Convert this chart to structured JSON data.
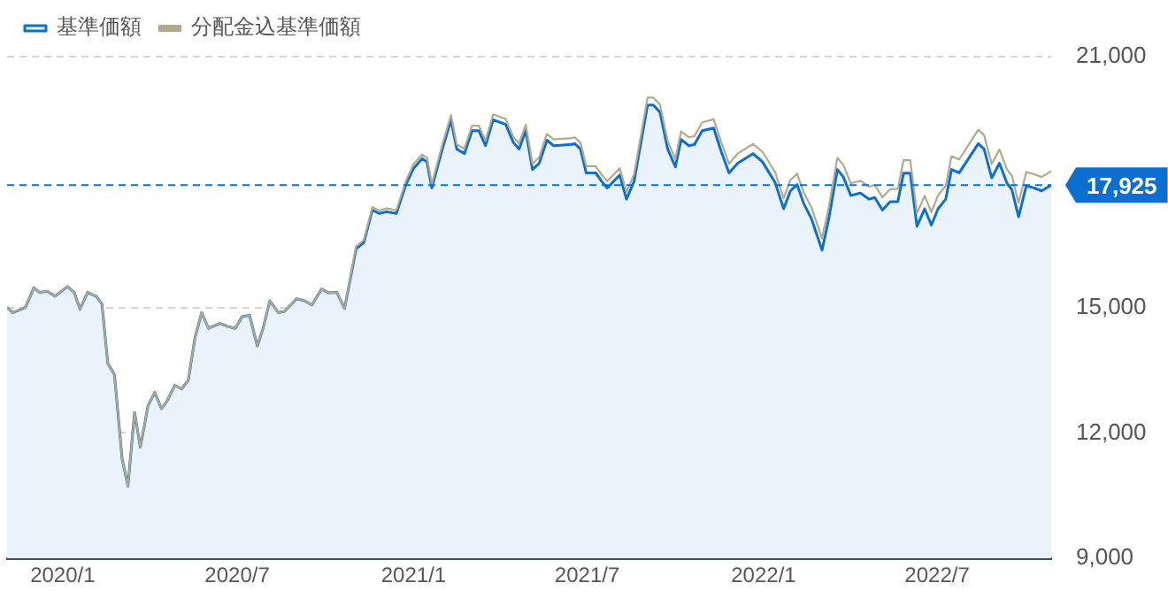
{
  "chart_data": {
    "type": "line",
    "x": [
      "2019-11-04",
      "2019-11-10",
      "2019-11-23",
      "2019-12-02",
      "2019-12-08",
      "2019-12-16",
      "2019-12-24",
      "2020-01-06",
      "2020-01-13",
      "2020-01-19",
      "2020-01-27",
      "2020-02-05",
      "2020-02-11",
      "2020-02-17",
      "2020-02-24",
      "2020-03-03",
      "2020-03-09",
      "2020-03-16",
      "2020-03-22",
      "2020-03-30",
      "2020-04-06",
      "2020-04-13",
      "2020-04-19",
      "2020-04-27",
      "2020-05-04",
      "2020-05-11",
      "2020-05-18",
      "2020-05-25",
      "2020-06-01",
      "2020-06-13",
      "2020-06-21",
      "2020-06-29",
      "2020-07-06",
      "2020-07-14",
      "2020-07-22",
      "2020-07-28",
      "2020-08-04",
      "2020-08-13",
      "2020-08-19",
      "2020-09-01",
      "2020-09-09",
      "2020-09-17",
      "2020-09-27",
      "2020-10-05",
      "2020-10-13",
      "2020-10-21",
      "2020-11-02",
      "2020-11-10",
      "2020-11-19",
      "2020-11-26",
      "2020-12-04",
      "2020-12-14",
      "2020-12-24",
      "2021-01-01",
      "2021-01-10",
      "2021-01-15",
      "2021-01-20",
      "2021-01-31",
      "2021-02-09",
      "2021-02-15",
      "2021-02-23",
      "2021-03-03",
      "2021-03-10",
      "2021-03-17",
      "2021-03-25",
      "2021-04-07",
      "2021-04-15",
      "2021-04-21",
      "2021-04-28",
      "2021-05-05",
      "2021-05-12",
      "2021-05-20",
      "2021-05-27",
      "2021-06-15",
      "2021-06-18",
      "2021-06-24",
      "2021-06-30",
      "2021-07-10",
      "2021-07-16",
      "2021-07-22",
      "2021-08-04",
      "2021-08-11",
      "2021-08-19",
      "2021-09-02",
      "2021-09-08",
      "2021-09-15",
      "2021-09-23",
      "2021-10-01",
      "2021-10-07",
      "2021-10-15",
      "2021-10-21",
      "2021-10-29",
      "2021-11-10",
      "2021-11-18",
      "2021-11-26",
      "2021-12-05",
      "2021-12-21",
      "2021-12-31",
      "2022-01-13",
      "2022-01-22",
      "2022-01-29",
      "2022-02-05",
      "2022-02-12",
      "2022-02-20",
      "2022-03-03",
      "2022-03-10",
      "2022-03-19",
      "2022-03-25",
      "2022-04-02",
      "2022-04-12",
      "2022-04-21",
      "2022-04-27",
      "2022-05-05",
      "2022-05-13",
      "2022-05-21",
      "2022-05-27",
      "2022-06-03",
      "2022-06-10",
      "2022-06-18",
      "2022-06-25",
      "2022-07-02",
      "2022-07-10",
      "2022-07-16",
      "2022-07-24",
      "2022-08-13",
      "2022-08-19",
      "2022-08-27",
      "2022-09-04",
      "2022-09-12",
      "2022-09-17",
      "2022-09-24",
      "2022-10-02",
      "2022-10-10",
      "2022-10-18",
      "2022-10-28"
    ],
    "series": [
      {
        "name": "基準価額",
        "type": "area",
        "color": "#0a6fd0",
        "values": [
          15000,
          14880,
          15000,
          15470,
          15360,
          15390,
          15270,
          15500,
          15360,
          14960,
          15360,
          15270,
          15080,
          13670,
          13390,
          11380,
          10730,
          12490,
          11660,
          12650,
          12970,
          12580,
          12770,
          13140,
          13050,
          13260,
          14280,
          14880,
          14500,
          14620,
          14550,
          14500,
          14780,
          14810,
          14080,
          14500,
          15160,
          14880,
          14900,
          15210,
          15160,
          15060,
          15440,
          15350,
          15360,
          14980,
          16400,
          16550,
          17330,
          17250,
          17290,
          17250,
          17940,
          18330,
          18560,
          18480,
          17860,
          18790,
          19490,
          18790,
          18680,
          19230,
          19230,
          18870,
          19490,
          19380,
          18950,
          18790,
          19230,
          18300,
          18450,
          19000,
          18870,
          18900,
          18920,
          18790,
          18220,
          18220,
          18020,
          17860,
          18170,
          17590,
          18020,
          19840,
          19840,
          19670,
          18790,
          18360,
          19020,
          18870,
          18900,
          19230,
          19290,
          18720,
          18220,
          18450,
          18680,
          18480,
          17990,
          17360,
          17790,
          17940,
          17480,
          17120,
          16370,
          17120,
          18300,
          18130,
          17680,
          17740,
          17590,
          17630,
          17330,
          17530,
          17530,
          18210,
          18210,
          16940,
          17360,
          16970,
          17360,
          17590,
          18300,
          18220,
          18920,
          18790,
          18100,
          18450,
          17970,
          17820,
          17170,
          17910,
          17860,
          17790,
          17925
        ]
      },
      {
        "name": "分配金込基準価額",
        "color": "#b3a98a",
        "values": [
          15000,
          14880,
          15000,
          15470,
          15360,
          15390,
          15270,
          15500,
          15360,
          14960,
          15360,
          15270,
          15080,
          13670,
          13390,
          11380,
          10730,
          12490,
          11660,
          12650,
          12970,
          12580,
          12770,
          13140,
          13050,
          13260,
          14280,
          14880,
          14500,
          14620,
          14550,
          14500,
          14780,
          14810,
          14080,
          14500,
          15160,
          14880,
          14900,
          15210,
          15160,
          15060,
          15440,
          15350,
          15360,
          14980,
          16460,
          16610,
          17400,
          17320,
          17370,
          17330,
          18030,
          18430,
          18660,
          18580,
          17960,
          18900,
          19600,
          18900,
          18800,
          19350,
          19350,
          18990,
          19620,
          19510,
          19080,
          18930,
          19370,
          18440,
          18590,
          19150,
          19020,
          19050,
          19070,
          18940,
          18380,
          18380,
          18180,
          18020,
          18330,
          17760,
          18190,
          20020,
          20020,
          19850,
          18980,
          18550,
          19210,
          19070,
          19100,
          19430,
          19500,
          18940,
          18440,
          18680,
          18910,
          18720,
          18240,
          17610,
          18050,
          18200,
          17750,
          17390,
          16650,
          17400,
          18580,
          18420,
          17970,
          18030,
          17890,
          17930,
          17630,
          17830,
          17840,
          18520,
          18520,
          17250,
          17670,
          17280,
          17680,
          17910,
          18620,
          18540,
          19250,
          19120,
          18430,
          18780,
          18300,
          18150,
          17500,
          18240,
          18190,
          18120,
          18260
        ]
      }
    ],
    "xlim": [
      "2019-11-04",
      "2022-10-28"
    ],
    "xticks": [
      {
        "value": "2020-01-01",
        "label": "2020/1"
      },
      {
        "value": "2020-07-01",
        "label": "2020/7"
      },
      {
        "value": "2021-01-01",
        "label": "2021/1"
      },
      {
        "value": "2021-07-01",
        "label": "2021/7"
      },
      {
        "value": "2022-01-01",
        "label": "2022/1"
      },
      {
        "value": "2022-07-01",
        "label": "2022/7"
      }
    ],
    "ylim": [
      9000,
      21000
    ],
    "yticks": [
      {
        "value": 9000,
        "label": "9,000"
      },
      {
        "value": 12000,
        "label": "12,000"
      },
      {
        "value": 15000,
        "label": "15,000"
      },
      {
        "value": 21000,
        "label": "21,000"
      }
    ],
    "ref_lines": [
      {
        "axis": "y",
        "value": 17925,
        "label": "17,925",
        "color": "#0a6fd0",
        "line_style": "dashed"
      }
    ],
    "grid": "y",
    "legend": "top left",
    "marker": "none",
    "line_style": "solid"
  }
}
